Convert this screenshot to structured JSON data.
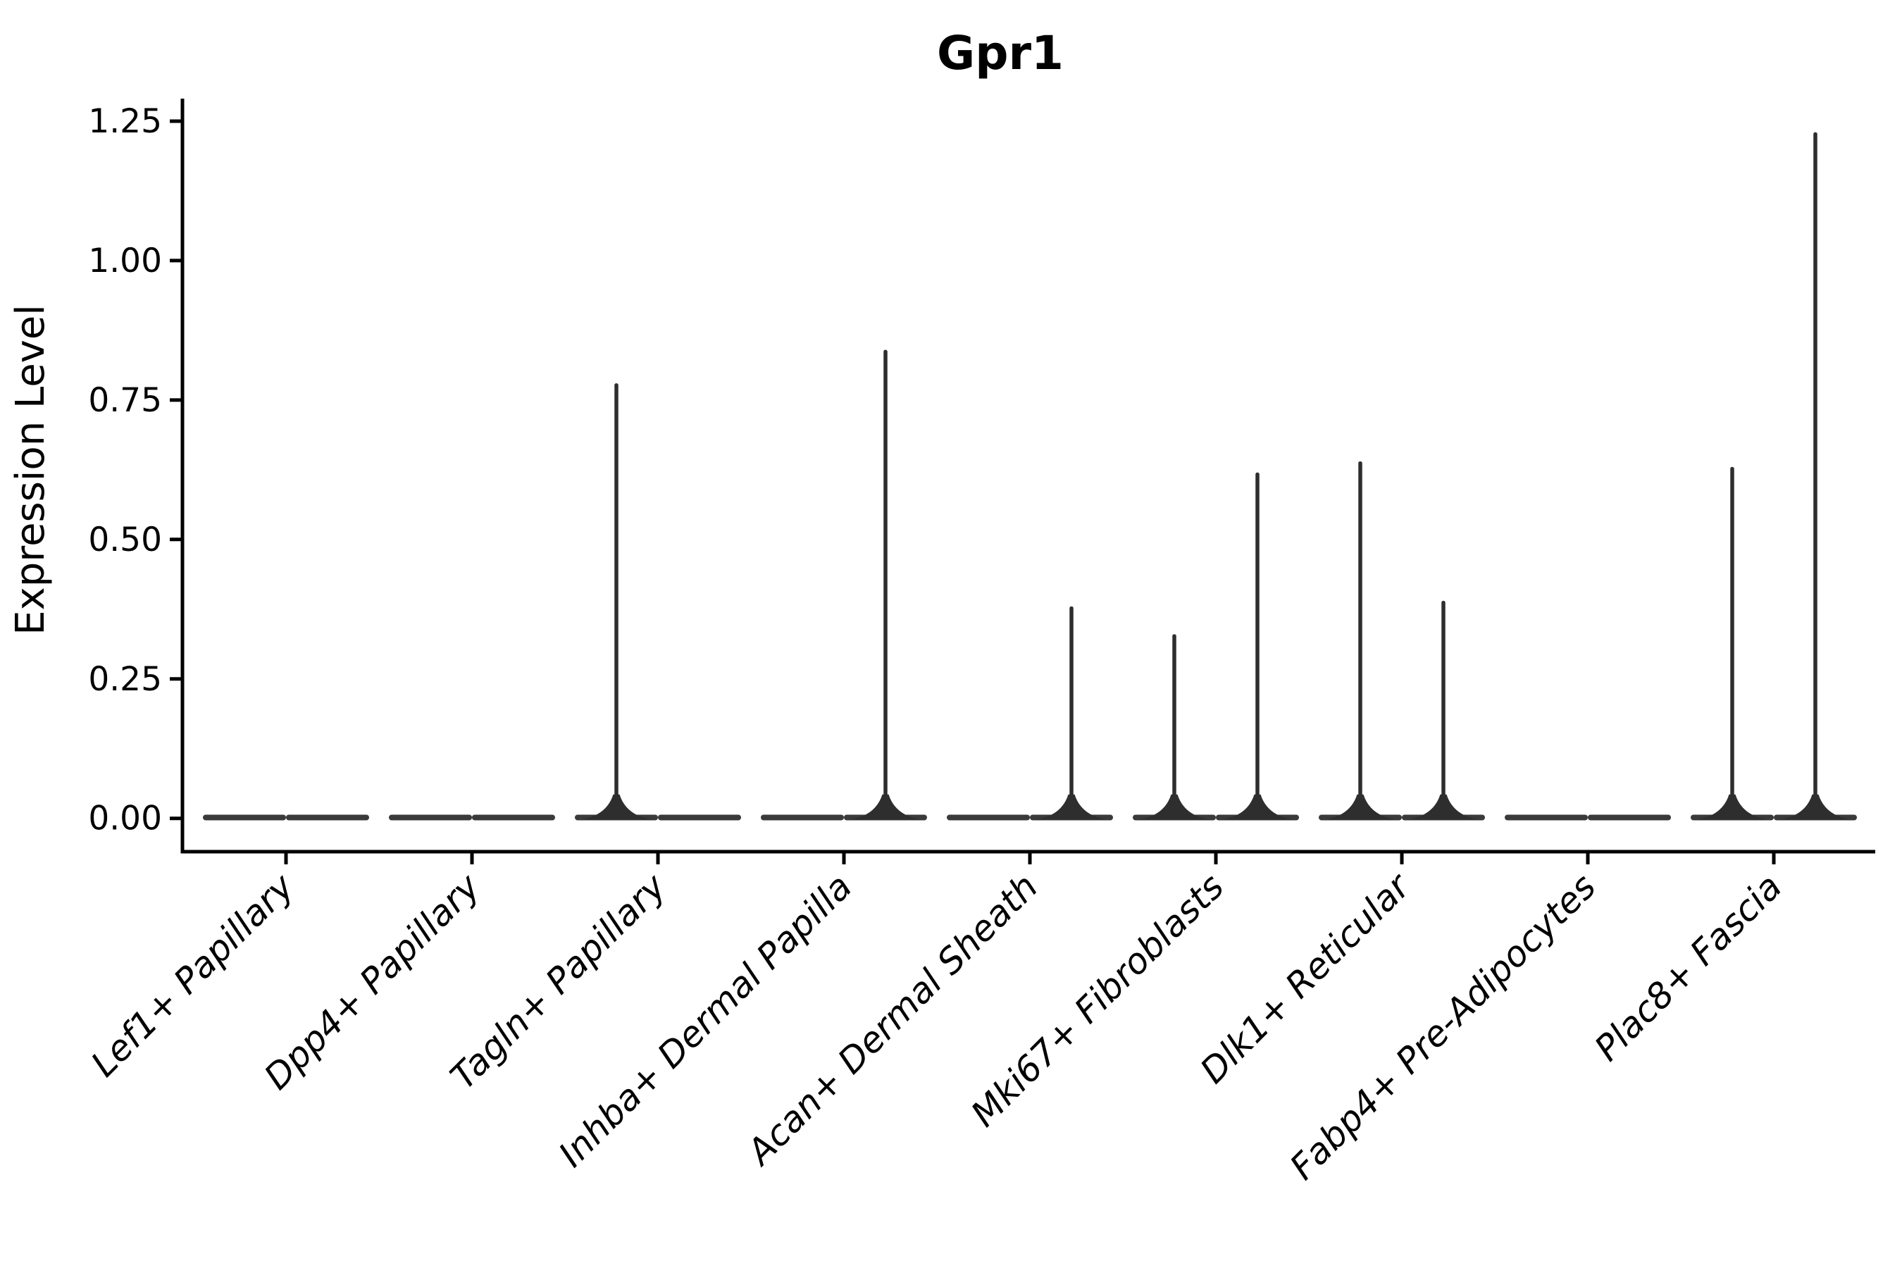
{
  "chart_data": {
    "type": "violin",
    "title": "Gpr1",
    "xlabel": "",
    "ylabel": "Expression Level",
    "yticks": [
      "0.00",
      "0.25",
      "0.50",
      "0.75",
      "1.00",
      "1.25"
    ],
    "ylim": [
      -0.06,
      1.29
    ],
    "grid": false,
    "legend": false,
    "categories": [
      "Lef1+ Papillary",
      "Dpp4+ Papillary",
      "Tagln+ Papillary",
      "Inhba+ Dermal Papilla",
      "Acan+ Dermal Sheath",
      "Mki67+ Fibroblasts",
      "Dlk1+ Reticular",
      "Fabp4+ Pre-Adipocytes",
      "Plac8+ Fascia"
    ],
    "violins": [
      {
        "category": "Lef1+ Papillary",
        "bulk_value": 0,
        "left_max": 0,
        "right_max": 0
      },
      {
        "category": "Dpp4+ Papillary",
        "bulk_value": 0,
        "left_max": 0,
        "right_max": 0
      },
      {
        "category": "Tagln+ Papillary",
        "bulk_value": 0,
        "left_max": 0.78,
        "right_max": 0
      },
      {
        "category": "Inhba+ Dermal Papilla",
        "bulk_value": 0,
        "left_max": 0,
        "right_max": 0.84
      },
      {
        "category": "Acan+ Dermal Sheath",
        "bulk_value": 0,
        "left_max": 0,
        "right_max": 0.38
      },
      {
        "category": "Mki67+ Fibroblasts",
        "bulk_value": 0,
        "left_max": 0.33,
        "right_max": 0.62
      },
      {
        "category": "Dlk1+ Reticular",
        "bulk_value": 0,
        "left_max": 0.64,
        "right_max": 0.39
      },
      {
        "category": "Fabp4+ Pre-Adipocytes",
        "bulk_value": 0,
        "left_max": 0,
        "right_max": 0
      },
      {
        "category": "Plac8+ Fascia",
        "bulk_value": 0,
        "left_max": 0.63,
        "right_max": 1.23
      }
    ],
    "colors": {
      "violin_fill": "#3a3a3a",
      "spike": "#2e2e2e",
      "axis": "#000000",
      "text": "#000000",
      "background": "#ffffff"
    }
  }
}
